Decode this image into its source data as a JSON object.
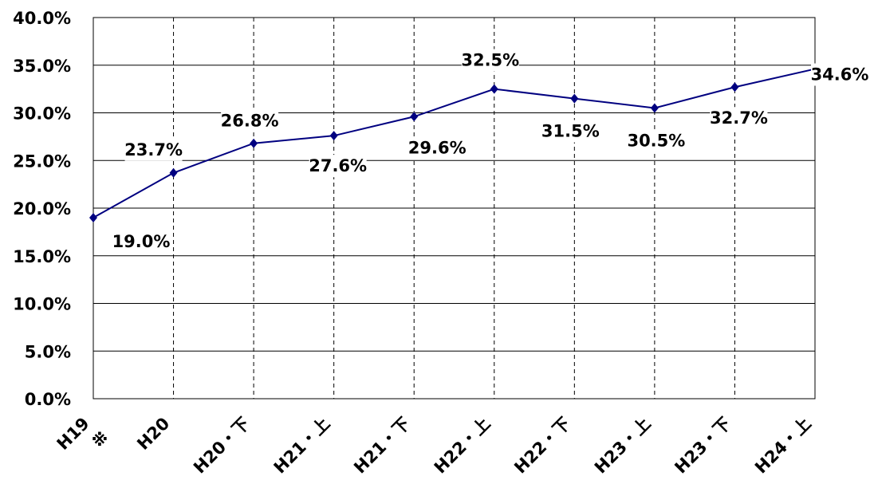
{
  "chart_data": {
    "type": "line",
    "categories": [
      "H19",
      "H20",
      "H20・下",
      "H21・上",
      "H21・下",
      "H22・上",
      "H22・下",
      "H23・上",
      "H23・下",
      "H24・上"
    ],
    "annotation": "※",
    "series": [
      {
        "name": null,
        "color": "#000080",
        "values": [
          19.0,
          23.7,
          26.8,
          27.6,
          29.6,
          32.5,
          31.5,
          30.5,
          32.7,
          34.6
        ],
        "value_labels": [
          "19.0%",
          "23.7%",
          "26.8%",
          "27.6%",
          "29.6%",
          "32.5%",
          "31.5%",
          "30.5%",
          "32.7%",
          "34.6%"
        ]
      }
    ],
    "ylim": [
      0,
      40
    ],
    "yticks": [
      {
        "value": 0,
        "label": "0.0%"
      },
      {
        "value": 5,
        "label": "5.0%"
      },
      {
        "value": 10,
        "label": "10.0%"
      },
      {
        "value": 15,
        "label": "15.0%"
      },
      {
        "value": 20,
        "label": "20.0%"
      },
      {
        "value": 25,
        "label": "25.0%"
      },
      {
        "value": 30,
        "label": "30.0%"
      },
      {
        "value": 35,
        "label": "35.0%"
      },
      {
        "value": 40,
        "label": "40.0%"
      }
    ],
    "grid": true
  }
}
